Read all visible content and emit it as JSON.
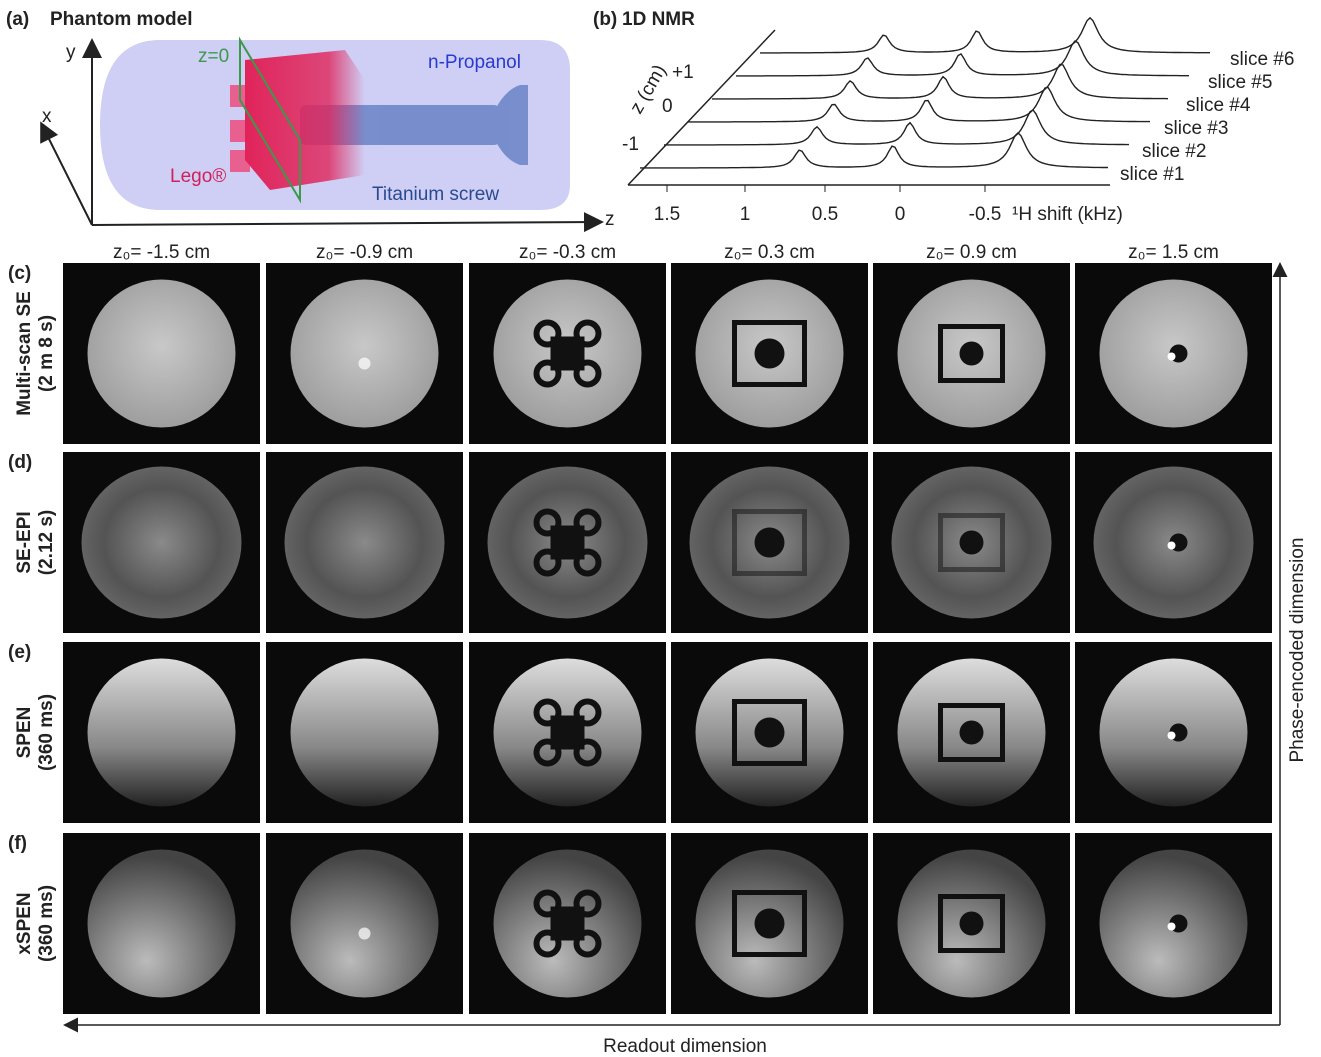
{
  "panel_a": {
    "label": "(a)",
    "title": "Phantom model",
    "axes": [
      "y",
      "x",
      "z"
    ],
    "plane": "z=0",
    "solvent": "n-Propanol",
    "block": "Lego®",
    "screw": "Titanium screw"
  },
  "panel_b": {
    "label": "(b)",
    "title": "1D NMR",
    "z_axis": "z (cm)",
    "z_ticks": [
      "+1",
      "0",
      "-1"
    ],
    "x_ticks": [
      "1.5",
      "1",
      "0.5",
      "0",
      "-0.5"
    ],
    "x_axis": "¹H shift (kHz)",
    "slices": [
      "slice #1",
      "slice #2",
      "slice #3",
      "slice #4",
      "slice #5",
      "slice #6"
    ]
  },
  "columns": [
    "z₀= -1.5 cm",
    "z₀= -0.9 cm",
    "z₀= -0.3 cm",
    "z₀= 0.3 cm",
    "z₀= 0.9 cm",
    "z₀= 1.5 cm"
  ],
  "rows": [
    {
      "label": "(c)",
      "method": "Multi-scan SE",
      "duration": "(2 m 8 s)"
    },
    {
      "label": "(d)",
      "method": "SE-EPI",
      "duration": "(2.12 s)"
    },
    {
      "label": "(e)",
      "method": "SPEN",
      "duration": "(360 ms)"
    },
    {
      "label": "(f)",
      "method": "xSPEN",
      "duration": "(360 ms)"
    }
  ],
  "phase_axis": "Phase-encoded dimension",
  "readout_axis": "Readout dimension"
}
